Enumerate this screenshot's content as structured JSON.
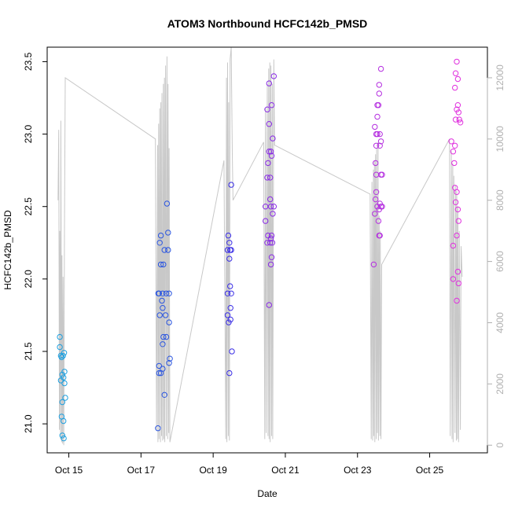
{
  "chart_data": {
    "type": "scatter",
    "title": "ATOM3 Northbound HCFC142b_PMSD",
    "xlabel": "Date",
    "ylabel": "HCFC142b_PMSD",
    "grid": false,
    "xlim": [
      14.4,
      26.6
    ],
    "ylim": [
      20.8,
      23.6
    ],
    "y2lim": [
      -250,
      13000
    ],
    "x_ticks": [
      {
        "value": 15,
        "label": "Oct 15"
      },
      {
        "value": 17,
        "label": "Oct 17"
      },
      {
        "value": 19,
        "label": "Oct 19"
      },
      {
        "value": 21,
        "label": "Oct 21"
      },
      {
        "value": 23,
        "label": "Oct 23"
      },
      {
        "value": 25,
        "label": "Oct 25"
      }
    ],
    "y_ticks": [
      21.0,
      21.5,
      22.0,
      22.5,
      23.0,
      23.5
    ],
    "y2_ticks": [
      0,
      2000,
      4000,
      6000,
      8000,
      10000,
      12000
    ],
    "series": [
      {
        "color": "#1EA0E0",
        "points": [
          [
            14.75,
            21.6
          ],
          [
            14.75,
            21.53
          ],
          [
            14.78,
            21.47
          ],
          [
            14.8,
            21.46
          ],
          [
            14.82,
            21.34
          ],
          [
            14.78,
            21.3
          ],
          [
            14.85,
            21.32
          ],
          [
            14.88,
            21.28
          ],
          [
            14.82,
            21.15
          ],
          [
            14.9,
            21.18
          ],
          [
            14.8,
            21.05
          ],
          [
            14.85,
            21.02
          ],
          [
            14.82,
            20.92
          ],
          [
            14.86,
            20.9
          ],
          [
            14.88,
            21.36
          ],
          [
            14.84,
            21.47
          ],
          [
            14.87,
            21.49
          ]
        ]
      },
      {
        "color": "#2A55E0",
        "points": [
          [
            17.47,
            20.97
          ],
          [
            17.48,
            21.9
          ],
          [
            17.5,
            21.9
          ],
          [
            17.5,
            21.4
          ],
          [
            17.5,
            21.35
          ],
          [
            17.55,
            21.35
          ],
          [
            17.52,
            21.75
          ],
          [
            17.55,
            22.1
          ],
          [
            17.52,
            22.25
          ],
          [
            17.55,
            22.3
          ],
          [
            17.58,
            21.85
          ],
          [
            17.6,
            21.8
          ],
          [
            17.6,
            21.9
          ],
          [
            17.62,
            21.6
          ],
          [
            17.6,
            21.55
          ],
          [
            17.6,
            21.38
          ],
          [
            17.65,
            21.2
          ],
          [
            17.7,
            21.9
          ],
          [
            17.68,
            21.75
          ],
          [
            17.7,
            21.6
          ],
          [
            17.72,
            22.52
          ],
          [
            17.75,
            22.32
          ],
          [
            17.75,
            22.2
          ],
          [
            17.78,
            21.9
          ],
          [
            17.78,
            21.7
          ],
          [
            17.8,
            21.45
          ],
          [
            17.78,
            21.42
          ],
          [
            17.62,
            22.1
          ],
          [
            17.65,
            22.2
          ]
        ]
      },
      {
        "color": "#3A2EE6",
        "points": [
          [
            19.4,
            22.2
          ],
          [
            19.42,
            22.3
          ],
          [
            19.4,
            21.9
          ],
          [
            19.4,
            21.75
          ],
          [
            19.43,
            21.7
          ],
          [
            19.45,
            22.25
          ],
          [
            19.45,
            22.14
          ],
          [
            19.47,
            22.2
          ],
          [
            19.48,
            21.8
          ],
          [
            19.48,
            21.72
          ],
          [
            19.5,
            21.9
          ],
          [
            19.45,
            21.35
          ],
          [
            19.52,
            21.5
          ],
          [
            19.5,
            22.65
          ],
          [
            19.47,
            21.95
          ],
          [
            19.5,
            22.2
          ]
        ]
      },
      {
        "color": "#8A2BE6",
        "points": [
          [
            20.45,
            22.5
          ],
          [
            20.45,
            22.4
          ],
          [
            20.5,
            22.25
          ],
          [
            20.52,
            22.3
          ],
          [
            20.5,
            22.7
          ],
          [
            20.52,
            22.8
          ],
          [
            20.55,
            22.88
          ],
          [
            20.58,
            22.55
          ],
          [
            20.58,
            22.25
          ],
          [
            20.6,
            22.28
          ],
          [
            20.6,
            22.1
          ],
          [
            20.62,
            22.15
          ],
          [
            20.6,
            22.5
          ],
          [
            20.62,
            22.85
          ],
          [
            20.65,
            22.45
          ],
          [
            20.65,
            22.97
          ],
          [
            20.68,
            22.5
          ],
          [
            20.55,
            21.82
          ],
          [
            20.55,
            23.07
          ],
          [
            20.5,
            23.17
          ],
          [
            20.55,
            23.35
          ],
          [
            20.62,
            23.2
          ],
          [
            20.68,
            23.4
          ],
          [
            20.6,
            22.88
          ],
          [
            20.58,
            22.7
          ],
          [
            20.62,
            22.3
          ],
          [
            20.64,
            22.25
          ]
        ]
      },
      {
        "color": "#B52FE0",
        "points": [
          [
            23.45,
            22.1
          ],
          [
            23.48,
            22.45
          ],
          [
            23.5,
            22.55
          ],
          [
            23.52,
            22.6
          ],
          [
            23.52,
            22.72
          ],
          [
            23.55,
            22.5
          ],
          [
            23.58,
            22.4
          ],
          [
            23.6,
            22.3
          ],
          [
            23.62,
            22.3
          ],
          [
            23.6,
            22.48
          ],
          [
            23.62,
            22.52
          ],
          [
            23.65,
            22.5
          ],
          [
            23.68,
            22.5
          ],
          [
            23.5,
            22.8
          ],
          [
            23.52,
            22.92
          ],
          [
            23.55,
            23.0
          ],
          [
            23.55,
            23.12
          ],
          [
            23.58,
            23.2
          ],
          [
            23.6,
            23.28
          ],
          [
            23.62,
            23.0
          ],
          [
            23.65,
            22.95
          ],
          [
            23.62,
            22.92
          ],
          [
            23.65,
            22.72
          ],
          [
            23.68,
            22.72
          ],
          [
            23.55,
            23.2
          ],
          [
            23.6,
            23.34
          ],
          [
            23.65,
            23.45
          ],
          [
            23.48,
            23.05
          ],
          [
            23.52,
            23.0
          ]
        ]
      },
      {
        "color": "#E030DE",
        "points": [
          [
            25.65,
            22.0
          ],
          [
            25.68,
            22.8
          ],
          [
            25.7,
            22.63
          ],
          [
            25.72,
            22.53
          ],
          [
            25.75,
            22.6
          ],
          [
            25.78,
            22.48
          ],
          [
            25.8,
            22.4
          ],
          [
            25.75,
            22.3
          ],
          [
            25.78,
            22.05
          ],
          [
            25.8,
            21.97
          ],
          [
            25.65,
            22.88
          ],
          [
            25.7,
            22.92
          ],
          [
            25.72,
            23.1
          ],
          [
            25.75,
            23.17
          ],
          [
            25.78,
            23.2
          ],
          [
            25.8,
            23.15
          ],
          [
            25.82,
            23.1
          ],
          [
            25.7,
            23.32
          ],
          [
            25.72,
            23.42
          ],
          [
            25.75,
            23.5
          ],
          [
            25.78,
            23.38
          ],
          [
            25.6,
            22.95
          ],
          [
            25.65,
            22.23
          ],
          [
            25.75,
            21.85
          ],
          [
            25.85,
            23.08
          ]
        ]
      }
    ],
    "secondary_line": {
      "color": "#C8C8C8",
      "axis": "y2",
      "x": [
        14.7,
        14.72,
        14.74,
        14.75,
        14.77,
        14.78,
        14.8,
        14.81,
        14.83,
        14.84,
        14.86,
        14.88,
        14.9,
        17.4,
        17.43,
        17.46,
        17.47,
        17.49,
        17.5,
        17.52,
        17.54,
        17.55,
        17.57,
        17.58,
        17.6,
        17.62,
        17.63,
        17.65,
        17.66,
        17.68,
        17.7,
        17.72,
        17.74,
        17.75,
        17.77,
        17.78,
        17.8,
        19.3,
        19.35,
        19.37,
        19.38,
        19.4,
        19.42,
        19.43,
        19.45,
        19.47,
        19.5,
        19.53,
        19.55,
        20.4,
        20.43,
        20.45,
        20.47,
        20.5,
        20.52,
        20.54,
        20.55,
        20.57,
        20.58,
        20.6,
        20.62,
        20.64,
        20.65,
        20.68,
        20.7,
        23.35,
        23.38,
        23.4,
        23.42,
        23.44,
        23.45,
        23.47,
        23.48,
        23.5,
        23.52,
        23.53,
        23.55,
        23.57,
        23.58,
        23.6,
        23.62,
        23.63,
        23.65,
        23.67,
        25.55,
        25.57,
        25.6,
        25.62,
        25.64,
        25.65,
        25.67,
        25.7,
        25.72,
        25.74,
        25.75,
        25.77,
        25.78,
        25.8,
        25.82,
        25.85,
        25.87,
        25.9
      ],
      "y": [
        8000,
        10300,
        500,
        7000,
        200,
        10600,
        100,
        6200,
        50,
        5500,
        0,
        7000,
        12000,
        10000,
        500,
        9800,
        100,
        10500,
        200,
        11000,
        100,
        11200,
        300,
        11500,
        150,
        11800,
        200,
        12000,
        100,
        12400,
        300,
        12700,
        200,
        11800,
        400,
        9700,
        100,
        9300,
        200,
        12000,
        100,
        12500,
        300,
        11200,
        150,
        12600,
        13000,
        9500,
        8000,
        9900,
        200,
        11000,
        400,
        11800,
        300,
        12300,
        200,
        12500,
        100,
        12400,
        300,
        11800,
        200,
        12600,
        9800,
        8200,
        200,
        8600,
        150,
        9000,
        300,
        9300,
        100,
        9500,
        200,
        9700,
        400,
        9900,
        150,
        7500,
        300,
        7000,
        200,
        5900,
        10000,
        300,
        9600,
        200,
        9200,
        100,
        8800,
        400,
        8500,
        150,
        8300,
        200,
        7800,
        100,
        7000,
        500,
        6500,
        5500
      ]
    }
  }
}
